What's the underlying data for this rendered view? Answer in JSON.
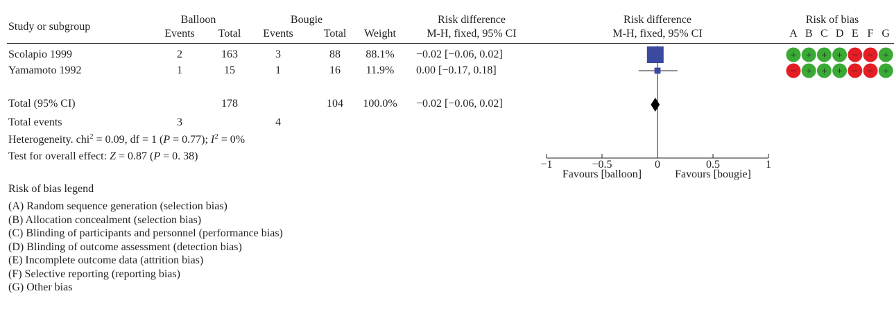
{
  "chart_data": {
    "type": "forest",
    "header": {
      "study_col": "Study or subgroup",
      "group1": "Balloon",
      "group2": "Bougie",
      "events": "Events",
      "total": "Total",
      "weight": "Weight",
      "effect_title": "Risk difference",
      "effect_method": "M-H, fixed, 95% CI",
      "plot_title": "Risk difference",
      "plot_method": "M-H, fixed, 95% CI",
      "bias_title": "Risk of bias",
      "bias_letters": [
        "A",
        "B",
        "C",
        "D",
        "E",
        "F",
        "G"
      ]
    },
    "studies": [
      {
        "name": "Scolapio 1999",
        "e1": "2",
        "t1": "163",
        "e2": "3",
        "t2": "88",
        "weight": "88.1%",
        "ci_text": "−0.02 [−0.06, 0.02]",
        "rd": -0.02,
        "lo": -0.06,
        "hi": 0.02,
        "w": 88.1,
        "bias": [
          "+",
          "+",
          "+",
          "+",
          "−",
          "−",
          "+"
        ]
      },
      {
        "name": "Yamamoto 1992",
        "e1": "1",
        "t1": "15",
        "e2": "1",
        "t2": "16",
        "weight": "11.9%",
        "ci_text": "0.00 [−0.17, 0.18]",
        "rd": 0.0,
        "lo": -0.17,
        "hi": 0.18,
        "w": 11.9,
        "bias": [
          "−",
          "+",
          "+",
          "+",
          "−",
          "−",
          "+"
        ]
      }
    ],
    "total": {
      "name": "Total (95% CI)",
      "t1": "178",
      "t2": "104",
      "weight": "100.0%",
      "ci_text": "−0.02 [−0.06, 0.02]",
      "rd": -0.02,
      "lo": -0.06,
      "hi": 0.02
    },
    "total_events": {
      "label": "Total events",
      "e1": "3",
      "e2": "4"
    },
    "heterogeneity": {
      "prefix": "Heterogeneity. chi",
      "exp": "2",
      "mid": " = 0.09, df = 1 (",
      "p": "P",
      "mid2": " = 0.77); ",
      "i": "I",
      "iexp": "2",
      "tail": " = 0%"
    },
    "overall": {
      "prefix": "Test for overall effect: ",
      "z": "Z",
      "mid": " = 0.87 (",
      "p": "P",
      "tail": " = 0. 38)"
    },
    "axis": {
      "min": -1,
      "max": 1,
      "ticks": [
        -1,
        -0.5,
        0,
        0.5,
        1
      ],
      "tick_labels": [
        "−1",
        "−0.5",
        "0",
        "0.5",
        "1"
      ],
      "left_label": "Favours [balloon]",
      "right_label": "Favours [bougie]"
    },
    "colors": {
      "box": "#3b4a9f",
      "diamond": "#000000",
      "plus": "#3aa935",
      "minus": "#e31e24",
      "text": "#231f20"
    },
    "legend": {
      "title": "Risk of bias legend",
      "items": [
        "(A) Random sequence generation (selection bias)",
        "(B) Allocation concealment (selection bias)",
        "(C) Blinding of participants and personnel (performance bias)",
        "(D) Blinding of outcome assessment (detection bias)",
        "(E) Incomplete outcome data (attrition bias)",
        "(F) Selective reporting (reporting bias)",
        "(G) Other bias"
      ]
    }
  }
}
